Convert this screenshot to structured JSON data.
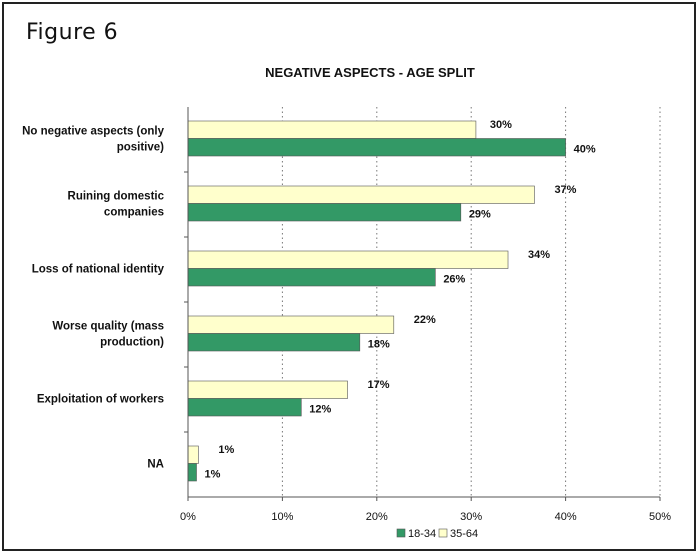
{
  "figure_label": "Figure 6",
  "chart_data": {
    "type": "bar",
    "orientation": "horizontal",
    "title": "NEGATIVE ASPECTS - AGE SPLIT",
    "categories": [
      [
        "No negative aspects (only",
        "positive)"
      ],
      [
        "Ruining domestic",
        "companies"
      ],
      [
        "Loss of national identity"
      ],
      [
        "Worse quality (mass",
        "production)"
      ],
      [
        "Exploitation of workers"
      ],
      [
        "NA"
      ]
    ],
    "series": [
      {
        "name": "35-64",
        "color": "#FFFFCC",
        "values": [
          30,
          37,
          34,
          22,
          17,
          1
        ],
        "value_labels": [
          "30%",
          "37%",
          "34%",
          "22%",
          "17%",
          "1%"
        ],
        "rendered_values": [
          30.5,
          36.7,
          33.9,
          21.8,
          16.9,
          1.1
        ]
      },
      {
        "name": "18-34",
        "color": "#339966",
        "values": [
          40,
          29,
          26,
          18,
          12,
          1
        ],
        "value_labels": [
          "40%",
          "29%",
          "26%",
          "18%",
          "12%",
          "1%"
        ],
        "rendered_values": [
          40.0,
          28.9,
          26.2,
          18.2,
          12.0,
          0.9
        ]
      }
    ],
    "legend_order": [
      "18-34",
      "35-64"
    ],
    "x_ticks": [
      "0%",
      "10%",
      "20%",
      "30%",
      "40%",
      "50%"
    ],
    "xlim": [
      0,
      50
    ],
    "grid": "vertical-dotted",
    "legend": "bottom-center"
  }
}
